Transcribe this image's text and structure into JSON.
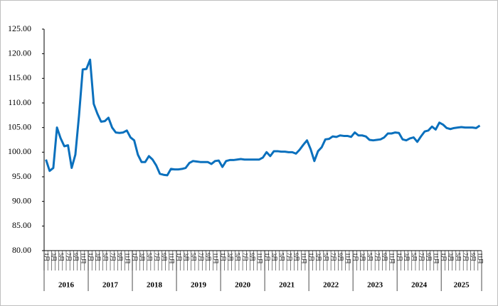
{
  "chart_data": {
    "type": "line",
    "categories": [
      "1月",
      null,
      "3月",
      null,
      "5月",
      null,
      "7月",
      null,
      "9月",
      null,
      "11月",
      null,
      "1月",
      null,
      "3月",
      null,
      "5月",
      null,
      "7月",
      null,
      "9月",
      null,
      "11月",
      null,
      "1月",
      null,
      "3月",
      null,
      "5月",
      null,
      "7月",
      null,
      "9月",
      null,
      "11月",
      null,
      "1月",
      null,
      "3月",
      null,
      "5月",
      null,
      "7月",
      null,
      "9月",
      null,
      "11月",
      null,
      "1月",
      null,
      "3月",
      null,
      "5月",
      null,
      "7月",
      null,
      "9月",
      null,
      "11月",
      null,
      "1月",
      null,
      "3月",
      null,
      "5月",
      null,
      "7月",
      null,
      "9月",
      null,
      "11月",
      null,
      "1月",
      null,
      "3月",
      null,
      "5月",
      null,
      "7月",
      null,
      "9月",
      null,
      "11月",
      null,
      "1月",
      null,
      "3月",
      null,
      "5月",
      null,
      "7月",
      null,
      "9月",
      null,
      "11月",
      null,
      "1月",
      null,
      "3月",
      null,
      "5月",
      null,
      "7月",
      null,
      "9月",
      null,
      "11月",
      null,
      "1月",
      null,
      "3月",
      null,
      "5月",
      null,
      "7月",
      null,
      "9月",
      null,
      "11月"
    ],
    "years": [
      "2016",
      "2017",
      "2018",
      "2019",
      "2020",
      "2021",
      "2022",
      "2023",
      "2024",
      "2025"
    ],
    "series": [
      {
        "color": "#0a70bd",
        "values": [
          98.5,
          96.2,
          96.8,
          105.0,
          102.8,
          101.2,
          101.4,
          96.8,
          99.5,
          107.5,
          116.8,
          116.9,
          118.8,
          109.8,
          107.8,
          106.2,
          106.3,
          107.0,
          105.0,
          104.0,
          103.9,
          104.0,
          104.4,
          103.0,
          102.4,
          99.5,
          98.0,
          98.0,
          99.2,
          98.5,
          97.3,
          95.6,
          95.4,
          95.3,
          96.6,
          96.5,
          96.5,
          96.6,
          96.8,
          97.8,
          98.2,
          98.1,
          98.0,
          98.0,
          98.0,
          97.6,
          98.2,
          98.3,
          97.0,
          98.2,
          98.4,
          98.4,
          98.5,
          98.6,
          98.5,
          98.5,
          98.5,
          98.5,
          98.5,
          98.9,
          100.0,
          99.2,
          100.2,
          100.2,
          100.1,
          100.1,
          100.0,
          100.0,
          99.7,
          100.5,
          101.5,
          102.4,
          100.6,
          98.2,
          100.2,
          101.0,
          102.6,
          102.7,
          103.2,
          103.1,
          103.4,
          103.3,
          103.3,
          103.1,
          104.0,
          103.4,
          103.4,
          103.2,
          102.5,
          102.4,
          102.5,
          102.6,
          103.0,
          103.8,
          103.8,
          104.0,
          103.9,
          102.6,
          102.4,
          102.8,
          103.0,
          102.1,
          103.2,
          104.2,
          104.4,
          105.2,
          104.6,
          106.0,
          105.6,
          104.9,
          104.7,
          104.9,
          105.0,
          105.1,
          105.0,
          105.0,
          105.0,
          104.9,
          105.4
        ]
      }
    ],
    "ylim": [
      80,
      125
    ],
    "yticks": [
      {
        "value": 80,
        "label": "80.00"
      },
      {
        "value": 85,
        "label": "85.00"
      },
      {
        "value": 90,
        "label": "90.00"
      },
      {
        "value": 95,
        "label": "95.00"
      },
      {
        "value": 100,
        "label": "100.00"
      },
      {
        "value": 105,
        "label": "105.00"
      },
      {
        "value": 110,
        "label": "110.00"
      },
      {
        "value": 115,
        "label": "115.00"
      },
      {
        "value": 120,
        "label": "120.00"
      },
      {
        "value": 125,
        "label": "125.00"
      }
    ]
  }
}
